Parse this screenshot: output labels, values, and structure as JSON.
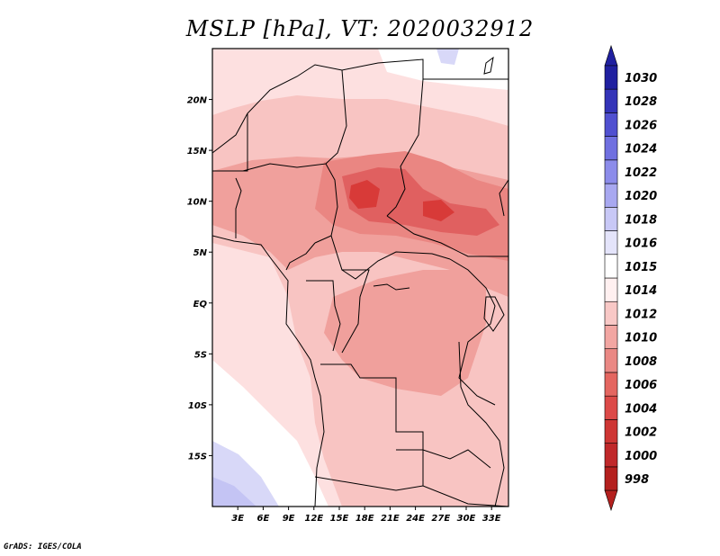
{
  "title": "MSLP [hPa], VT: 2020032912",
  "credit": "GrADS: IGES/COLA",
  "y_axis": {
    "label_lat": [
      20,
      15,
      10,
      5,
      0,
      -5,
      -10,
      -15
    ],
    "labels": [
      "20N",
      "15N",
      "10N",
      "5N",
      "EQ",
      "5S",
      "10S",
      "15S"
    ]
  },
  "x_axis": {
    "label_lon": [
      3,
      6,
      9,
      12,
      15,
      18,
      21,
      24,
      27,
      30,
      33
    ],
    "labels": [
      "3E",
      "6E",
      "9E",
      "12E",
      "15E",
      "18E",
      "21E",
      "24E",
      "27E",
      "30E",
      "33E"
    ]
  },
  "map_extent": {
    "lon_min": 0,
    "lon_max": 35,
    "lat_min": -20,
    "lat_max": 25
  },
  "colorbar": {
    "levels": [
      "998",
      "1000",
      "1002",
      "1004",
      "1006",
      "1008",
      "1010",
      "1012",
      "1014",
      "1015",
      "1016",
      "1018",
      "1020",
      "1022",
      "1024",
      "1026",
      "1028",
      "1030"
    ],
    "colors": [
      "#b4201e",
      "#c0282a",
      "#ce3634",
      "#dc4a48",
      "#e46660",
      "#ea8884",
      "#f2a6a2",
      "#f8c8c6",
      "#fff0f0",
      "#ffffff",
      "#e4e4fa",
      "#c8c8f6",
      "#a8a8f0",
      "#8c8cea",
      "#7070e0",
      "#5050d0",
      "#3434b8",
      "#2020a0"
    ]
  },
  "field_colors": {
    "low_998": "#d83a38",
    "p1004": "#e06060",
    "p1006": "#ea8682",
    "p1008": "#f0a09c",
    "p1010": "#f8c4c2",
    "p1012": "#fde0e0",
    "p1014": "#ffffff",
    "p1016": "#d8d8f8",
    "p1018": "#c4c4f4"
  }
}
